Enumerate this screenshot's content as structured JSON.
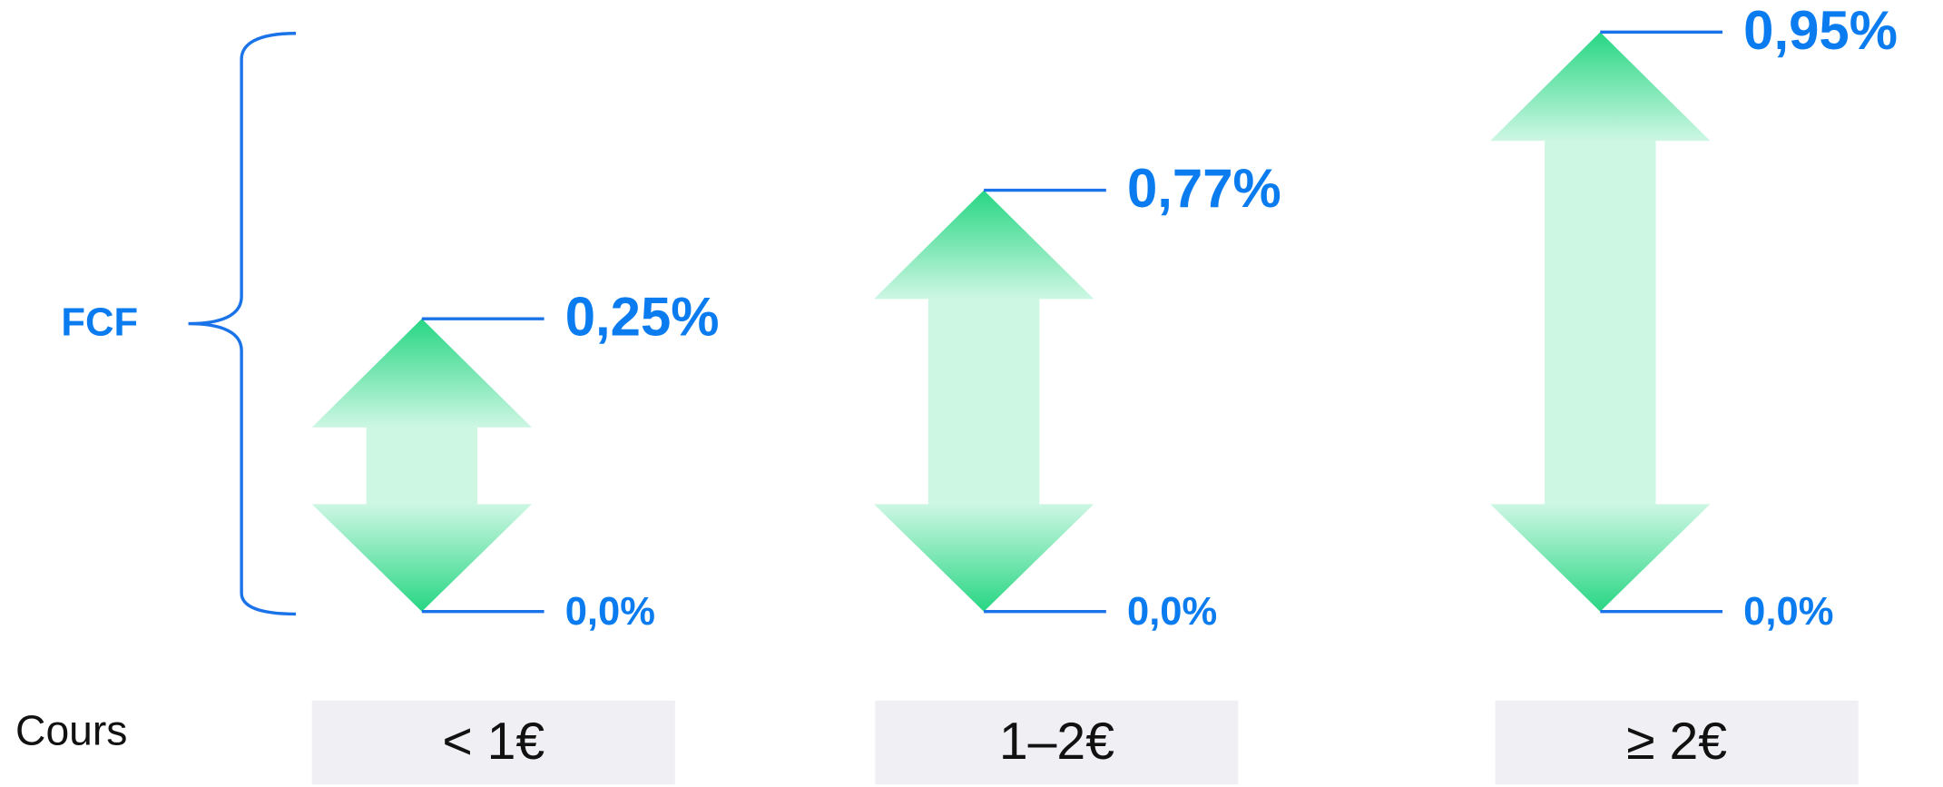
{
  "label_left": "FCF",
  "row_label": "Cours",
  "columns": [
    {
      "top": "0,25%",
      "bottom": "0,0%",
      "price": "< 1€"
    },
    {
      "top": "0,77%",
      "bottom": "0,0%",
      "price": "1–2€"
    },
    {
      "top": "0,95%",
      "bottom": "0,0%",
      "price": "≥ 2€"
    }
  ]
}
